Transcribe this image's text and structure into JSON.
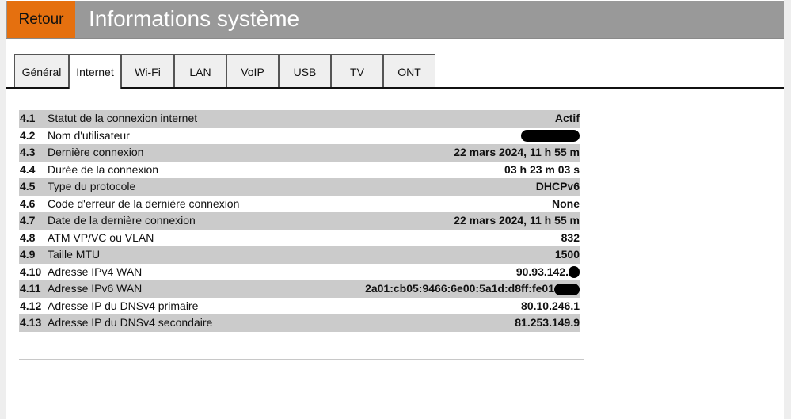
{
  "header": {
    "back_label": "Retour",
    "title": "Informations système",
    "accent": "#e5700f"
  },
  "tabs": [
    {
      "label": "Général"
    },
    {
      "label": "Internet",
      "active": true
    },
    {
      "label": "Wi-Fi"
    },
    {
      "label": "LAN"
    },
    {
      "label": "VoIP"
    },
    {
      "label": "USB"
    },
    {
      "label": "TV"
    },
    {
      "label": "ONT"
    }
  ],
  "rows": [
    {
      "num": "4.1",
      "label": "Statut de la connexion internet",
      "value": "Actif"
    },
    {
      "num": "4.2",
      "label": "Nom d'utilisateur",
      "value": "",
      "redacted": true
    },
    {
      "num": "4.3",
      "label": "Dernière connexion",
      "value": "22 mars 2024, 11 h 55 m"
    },
    {
      "num": "4.4",
      "label": "Durée de la connexion",
      "value": "03 h 23 m 03 s"
    },
    {
      "num": "4.5",
      "label": "Type du protocole",
      "value": "DHCPv6"
    },
    {
      "num": "4.6",
      "label": "Code d'erreur de la dernière connexion",
      "value": "None"
    },
    {
      "num": "4.7",
      "label": "Date de la dernière connexion",
      "value": "22 mars 2024, 11 h 55 m"
    },
    {
      "num": "4.8",
      "label": "ATM VP/VC ou VLAN",
      "value": "832"
    },
    {
      "num": "4.9",
      "label": "Taille MTU",
      "value": "1500"
    },
    {
      "num": "4.10",
      "label": "Adresse IPv4 WAN",
      "value": "90.93.142.",
      "redacted": true
    },
    {
      "num": "4.11",
      "label": "Adresse IPv6 WAN",
      "value": "2a01:cb05:9466:6e00:5a1d:d8ff:fe01",
      "redacted": true
    },
    {
      "num": "4.12",
      "label": "Adresse IP du DNSv4 primaire",
      "value": "80.10.246.1"
    },
    {
      "num": "4.13",
      "label": "Adresse IP du DNSv4 secondaire",
      "value": "81.253.149.9"
    }
  ]
}
